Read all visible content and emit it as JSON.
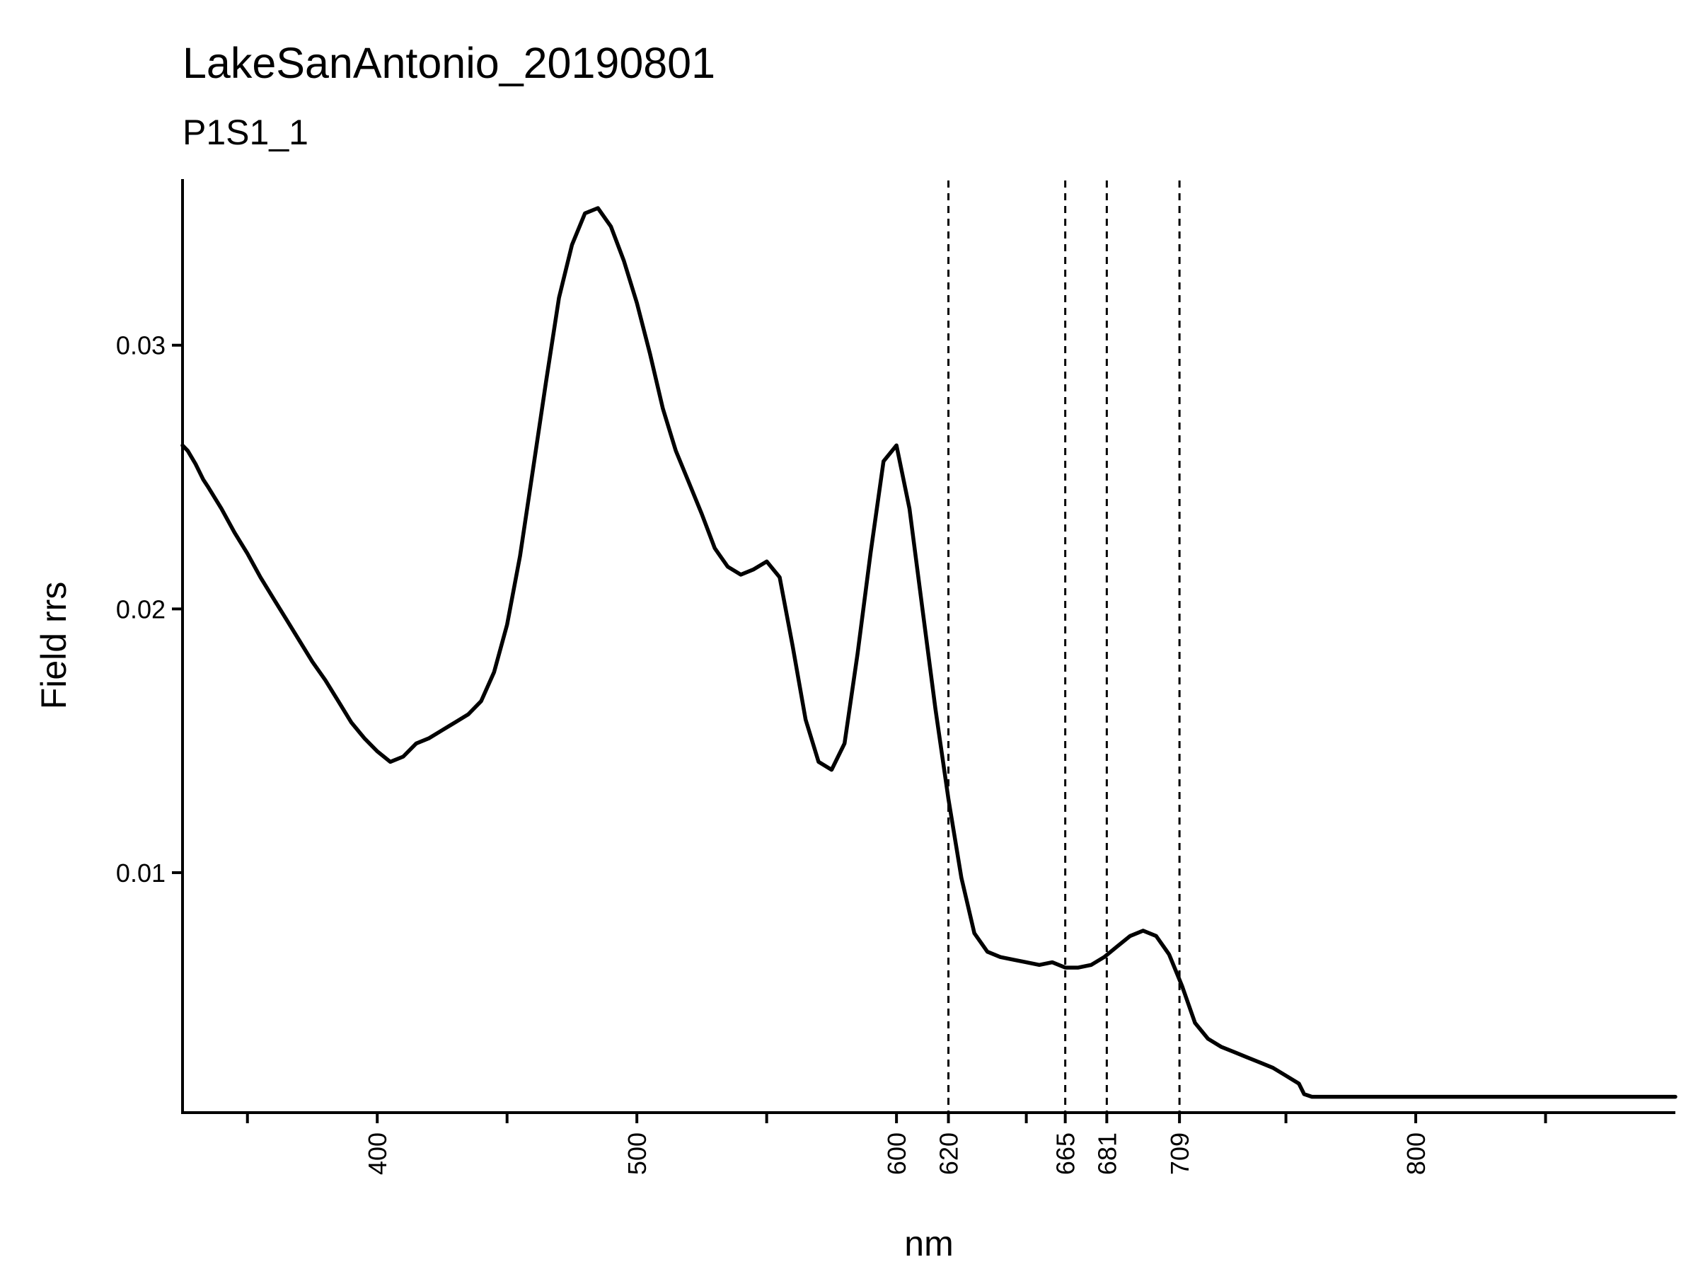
{
  "chart_data": {
    "type": "line",
    "title": "LakeSanAntonio_20190801",
    "subtitle": "P1S1_1",
    "xlabel": "nm",
    "ylabel": "Field rrs",
    "xlim": [
      325,
      900
    ],
    "ylim": [
      0.0009,
      0.0363
    ],
    "grid": false,
    "legend": "none",
    "x_ticks": [
      400,
      500,
      600,
      620,
      665,
      681,
      709,
      800
    ],
    "x_minor_ticks": [
      350,
      450,
      550,
      650,
      750,
      850
    ],
    "y_ticks": [
      0.01,
      0.02,
      0.03
    ],
    "y_tick_labels": [
      "0.01",
      "0.02",
      "0.03"
    ],
    "vlines": [
      620,
      665,
      681,
      709
    ],
    "series": [
      {
        "color": "#000000",
        "x": [
          325,
          327,
          330,
          333,
          335,
          340,
          345,
          350,
          355,
          360,
          365,
          370,
          375,
          380,
          385,
          390,
          395,
          400,
          405,
          410,
          415,
          420,
          425,
          430,
          435,
          440,
          445,
          450,
          455,
          460,
          465,
          470,
          475,
          480,
          485,
          490,
          495,
          500,
          505,
          510,
          515,
          520,
          525,
          530,
          535,
          540,
          545,
          550,
          555,
          560,
          565,
          570,
          575,
          580,
          585,
          590,
          595,
          600,
          605,
          610,
          615,
          620,
          625,
          630,
          635,
          640,
          645,
          650,
          655,
          660,
          665,
          670,
          675,
          680,
          685,
          690,
          695,
          700,
          705,
          710,
          715,
          720,
          725,
          730,
          735,
          740,
          745,
          750,
          755,
          757,
          760,
          765,
          770,
          775,
          780,
          785,
          790,
          795,
          800,
          805,
          810,
          815,
          820,
          825,
          830,
          840,
          850,
          860,
          870,
          880,
          890,
          900
        ],
        "y": [
          0.0262,
          0.026,
          0.0255,
          0.0249,
          0.0246,
          0.0238,
          0.0229,
          0.0221,
          0.0212,
          0.0204,
          0.0196,
          0.0188,
          0.018,
          0.0173,
          0.0165,
          0.0157,
          0.0151,
          0.0146,
          0.0142,
          0.0144,
          0.0149,
          0.0151,
          0.0154,
          0.0157,
          0.016,
          0.0165,
          0.0176,
          0.0194,
          0.022,
          0.0253,
          0.0286,
          0.0318,
          0.0338,
          0.035,
          0.0352,
          0.0345,
          0.0332,
          0.0316,
          0.0297,
          0.0276,
          0.026,
          0.0248,
          0.0236,
          0.0223,
          0.0216,
          0.0213,
          0.0215,
          0.0218,
          0.0212,
          0.0186,
          0.0158,
          0.0142,
          0.0139,
          0.0149,
          0.0183,
          0.0221,
          0.0256,
          0.0262,
          0.0238,
          0.02,
          0.0162,
          0.0128,
          0.0098,
          0.0077,
          0.007,
          0.0068,
          0.0067,
          0.0066,
          0.0065,
          0.0066,
          0.0064,
          0.0064,
          0.0065,
          0.0068,
          0.0072,
          0.0076,
          0.0078,
          0.0076,
          0.0069,
          0.0057,
          0.0043,
          0.0037,
          0.0034,
          0.0032,
          0.003,
          0.0028,
          0.0026,
          0.0023,
          0.002,
          0.0016,
          0.0015,
          0.0015,
          0.0015,
          0.0015,
          0.0015,
          0.0015,
          0.0015,
          0.0015,
          0.0015,
          0.0015,
          0.0015,
          0.0015,
          0.0015,
          0.0015,
          0.0015,
          0.0015,
          0.0015,
          0.0015,
          0.0015,
          0.0015,
          0.0015,
          0.0015
        ]
      }
    ]
  }
}
